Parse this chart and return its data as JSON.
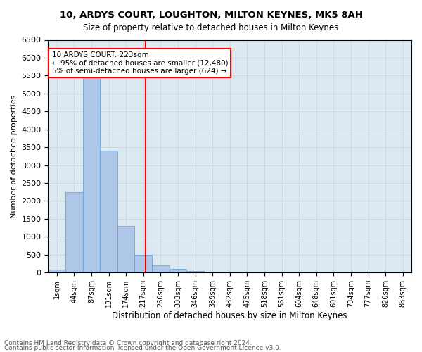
{
  "title1": "10, ARDYS COURT, LOUGHTON, MILTON KEYNES, MK5 8AH",
  "title2": "Size of property relative to detached houses in Milton Keynes",
  "xlabel": "Distribution of detached houses by size in Milton Keynes",
  "ylabel": "Number of detached properties",
  "footer1": "Contains HM Land Registry data © Crown copyright and database right 2024.",
  "footer2": "Contains public sector information licensed under the Open Government Licence v3.0.",
  "bin_labels": [
    "1sqm",
    "44sqm",
    "87sqm",
    "131sqm",
    "174sqm",
    "217sqm",
    "260sqm",
    "303sqm",
    "346sqm",
    "389sqm",
    "432sqm",
    "475sqm",
    "518sqm",
    "561sqm",
    "604sqm",
    "648sqm",
    "691sqm",
    "734sqm",
    "777sqm",
    "820sqm",
    "863sqm"
  ],
  "bar_values": [
    75,
    2250,
    5450,
    3400,
    1300,
    490,
    210,
    95,
    45,
    0,
    0,
    0,
    0,
    0,
    0,
    0,
    0,
    0,
    0,
    0,
    0
  ],
  "bar_color": "#aec6e8",
  "bar_edge_color": "#5a9fd4",
  "vline_color": "red",
  "annotation_text": "10 ARDYS COURT: 223sqm\n← 95% of detached houses are smaller (12,480)\n5% of semi-detached houses are larger (624) →",
  "annotation_box_color": "white",
  "annotation_box_edge_color": "red",
  "ylim": [
    0,
    6500
  ],
  "yticks": [
    0,
    500,
    1000,
    1500,
    2000,
    2500,
    3000,
    3500,
    4000,
    4500,
    5000,
    5500,
    6000,
    6500
  ],
  "grid_color": "#c8d8e8",
  "bg_color": "#dce8f0"
}
